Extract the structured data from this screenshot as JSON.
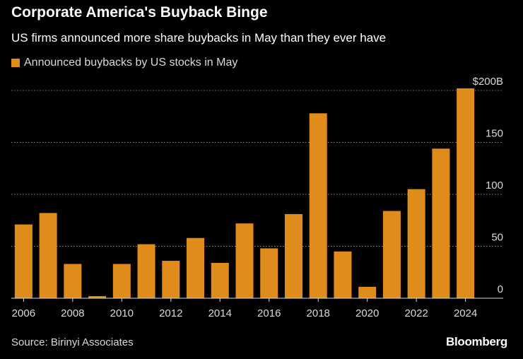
{
  "header": {
    "title": "Corporate America's Buyback Binge",
    "subtitle": "US firms announced more share buybacks in May than they ever have"
  },
  "legend": {
    "label": "Announced buybacks by US stocks in May"
  },
  "footer": {
    "source": "Source: Birinyi Associates",
    "brand": "Bloomberg"
  },
  "colors": {
    "background": "#000000",
    "bar": "#e08c1c",
    "grid": "#8a8a8a",
    "axis_text": "#d9d9d9"
  },
  "chart_data": {
    "type": "bar",
    "title": "Corporate America's Buyback Binge",
    "subtitle": "US firms announced more share buybacks in May than they ever have",
    "categories": [
      "2006",
      "2007",
      "2008",
      "2009",
      "2010",
      "2011",
      "2012",
      "2013",
      "2014",
      "2015",
      "2016",
      "2017",
      "2018",
      "2019",
      "2020",
      "2021",
      "2022",
      "2023",
      "2024"
    ],
    "series": [
      {
        "name": "Announced buybacks by US stocks in May",
        "values": [
          71,
          82,
          33,
          2,
          33,
          52,
          36,
          58,
          34,
          72,
          48,
          81,
          178,
          45,
          11,
          84,
          105,
          144,
          202
        ]
      }
    ],
    "x_tick_labels": [
      "2006",
      "2008",
      "2010",
      "2012",
      "2014",
      "2016",
      "2018",
      "2020",
      "2022",
      "2024"
    ],
    "y_ticks": [
      {
        "value": 0,
        "label": "0"
      },
      {
        "value": 50,
        "label": "50"
      },
      {
        "value": 100,
        "label": "100"
      },
      {
        "value": 150,
        "label": "150"
      },
      {
        "value": 200,
        "label": "$200B"
      }
    ],
    "ylim": [
      0,
      200
    ],
    "y_axis_position": "right",
    "grid": true,
    "legend_position": "top-left"
  }
}
